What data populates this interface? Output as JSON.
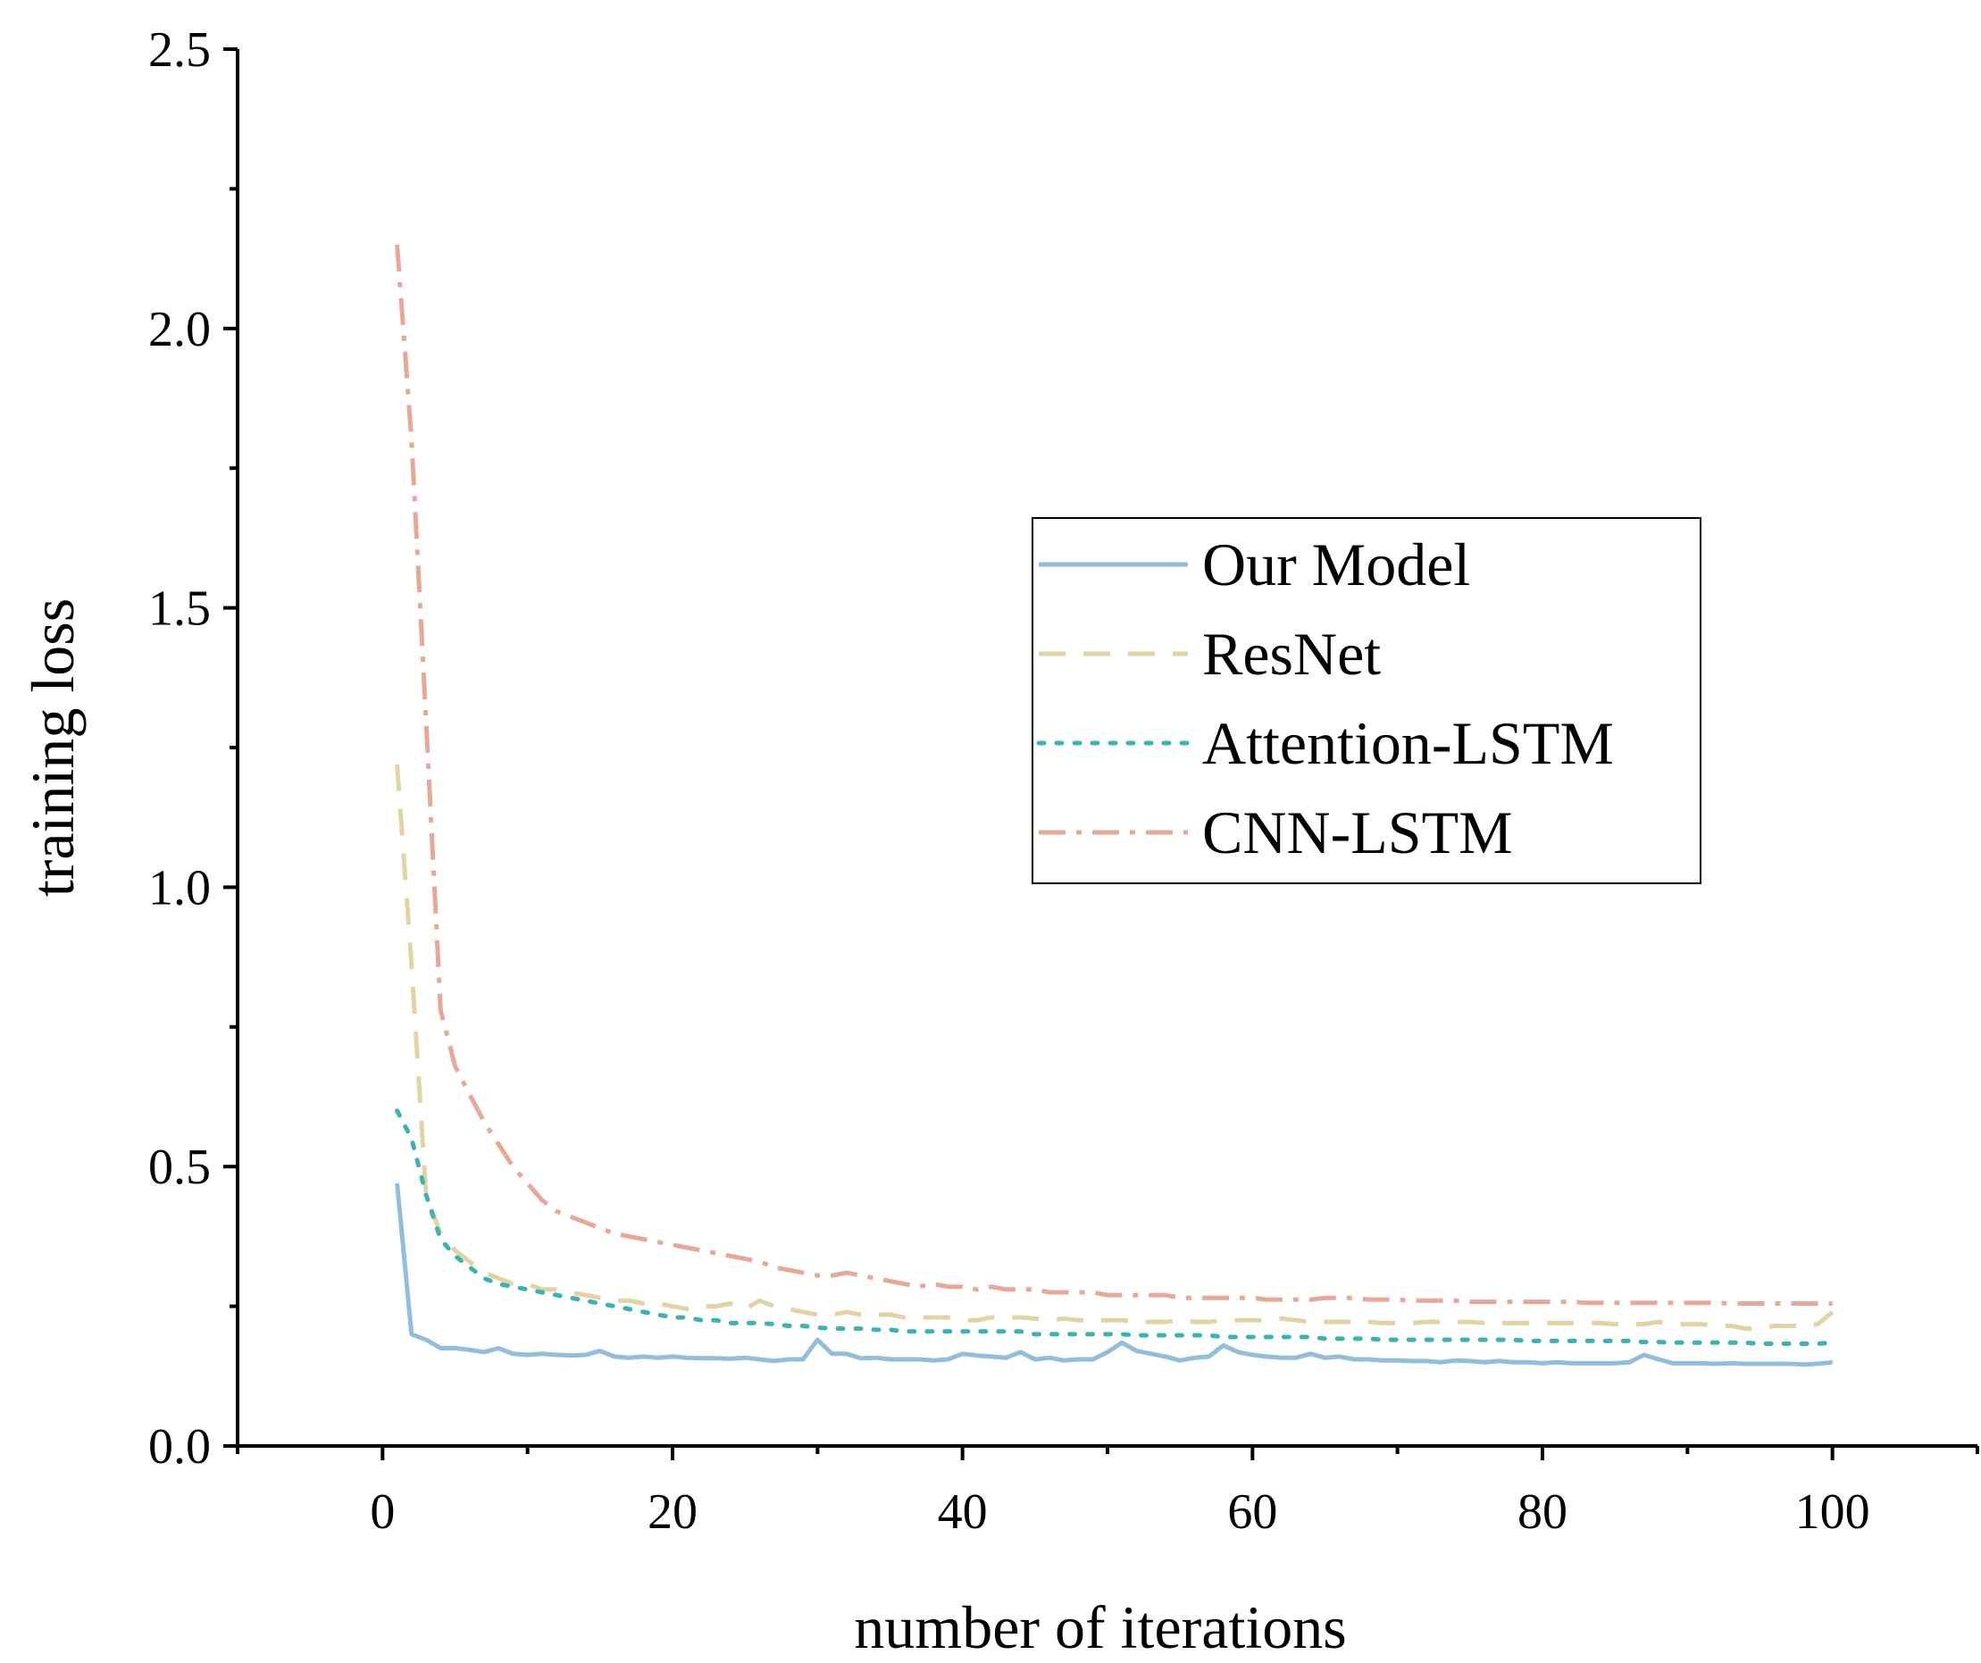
{
  "chart_data": {
    "type": "line",
    "title": "",
    "xlabel": "number of iterations",
    "ylabel": "training loss",
    "xlim": [
      -10,
      110
    ],
    "ylim": [
      0,
      2.5
    ],
    "xticks": [
      0,
      20,
      40,
      60,
      80,
      100
    ],
    "yticks": [
      0.0,
      0.5,
      1.0,
      1.5,
      2.0,
      2.5
    ],
    "xtick_labels": [
      "0",
      "20",
      "40",
      "60",
      "80",
      "100"
    ],
    "ytick_labels": [
      "0.0",
      "0.5",
      "1.0",
      "1.5",
      "2.0",
      "2.5"
    ],
    "legend_position": "center-right",
    "x": [
      1,
      2,
      3,
      4,
      5,
      6,
      7,
      8,
      9,
      10,
      11,
      12,
      13,
      14,
      15,
      16,
      17,
      18,
      19,
      20,
      21,
      22,
      23,
      24,
      25,
      26,
      27,
      28,
      29,
      30,
      31,
      32,
      33,
      34,
      35,
      36,
      37,
      38,
      39,
      40,
      41,
      42,
      43,
      44,
      45,
      46,
      47,
      48,
      49,
      50,
      51,
      52,
      53,
      54,
      55,
      56,
      57,
      58,
      59,
      60,
      61,
      62,
      63,
      64,
      65,
      66,
      67,
      68,
      69,
      70,
      71,
      72,
      73,
      74,
      75,
      76,
      77,
      78,
      79,
      80,
      81,
      82,
      83,
      84,
      85,
      86,
      87,
      88,
      89,
      90,
      91,
      92,
      93,
      94,
      95,
      96,
      97,
      98,
      99,
      100
    ],
    "series": [
      {
        "name": "Our Model",
        "color": "#91bfdb",
        "dash": "solid",
        "values": [
          0.47,
          0.2,
          0.19,
          0.175,
          0.175,
          0.172,
          0.168,
          0.175,
          0.165,
          0.163,
          0.165,
          0.163,
          0.162,
          0.163,
          0.17,
          0.16,
          0.158,
          0.16,
          0.158,
          0.16,
          0.158,
          0.157,
          0.157,
          0.156,
          0.158,
          0.155,
          0.152,
          0.155,
          0.155,
          0.19,
          0.165,
          0.165,
          0.157,
          0.158,
          0.155,
          0.155,
          0.155,
          0.153,
          0.155,
          0.165,
          0.162,
          0.16,
          0.158,
          0.168,
          0.155,
          0.158,
          0.153,
          0.155,
          0.155,
          0.168,
          0.185,
          0.17,
          0.165,
          0.16,
          0.153,
          0.158,
          0.16,
          0.18,
          0.168,
          0.163,
          0.16,
          0.158,
          0.158,
          0.165,
          0.158,
          0.16,
          0.155,
          0.155,
          0.153,
          0.153,
          0.152,
          0.152,
          0.15,
          0.153,
          0.152,
          0.15,
          0.152,
          0.15,
          0.15,
          0.148,
          0.15,
          0.148,
          0.148,
          0.148,
          0.148,
          0.15,
          0.163,
          0.155,
          0.148,
          0.148,
          0.148,
          0.147,
          0.148,
          0.147,
          0.147,
          0.147,
          0.147,
          0.146,
          0.147,
          0.15
        ]
      },
      {
        "name": "ResNet",
        "color": "#e3d3a3",
        "dash": "dashed",
        "values": [
          1.22,
          0.86,
          0.45,
          0.38,
          0.35,
          0.33,
          0.31,
          0.3,
          0.29,
          0.29,
          0.28,
          0.28,
          0.275,
          0.27,
          0.265,
          0.26,
          0.26,
          0.255,
          0.255,
          0.25,
          0.245,
          0.25,
          0.25,
          0.255,
          0.245,
          0.26,
          0.25,
          0.245,
          0.24,
          0.235,
          0.235,
          0.24,
          0.235,
          0.235,
          0.235,
          0.23,
          0.23,
          0.23,
          0.23,
          0.225,
          0.225,
          0.23,
          0.23,
          0.23,
          0.228,
          0.225,
          0.228,
          0.225,
          0.225,
          0.225,
          0.225,
          0.222,
          0.222,
          0.222,
          0.225,
          0.222,
          0.222,
          0.225,
          0.225,
          0.225,
          0.225,
          0.228,
          0.225,
          0.222,
          0.222,
          0.222,
          0.222,
          0.222,
          0.22,
          0.22,
          0.22,
          0.222,
          0.222,
          0.222,
          0.222,
          0.22,
          0.22,
          0.22,
          0.22,
          0.22,
          0.22,
          0.22,
          0.22,
          0.22,
          0.218,
          0.218,
          0.218,
          0.222,
          0.218,
          0.218,
          0.218,
          0.215,
          0.215,
          0.21,
          0.21,
          0.215,
          0.215,
          0.215,
          0.218,
          0.24
        ]
      },
      {
        "name": "Attention-LSTM",
        "color": "#3cb3b3",
        "dash": "dotted",
        "values": [
          0.6,
          0.55,
          0.45,
          0.37,
          0.34,
          0.32,
          0.3,
          0.29,
          0.285,
          0.28,
          0.275,
          0.27,
          0.265,
          0.26,
          0.255,
          0.25,
          0.245,
          0.24,
          0.235,
          0.23,
          0.23,
          0.225,
          0.225,
          0.22,
          0.22,
          0.22,
          0.218,
          0.215,
          0.215,
          0.212,
          0.21,
          0.21,
          0.21,
          0.208,
          0.208,
          0.205,
          0.205,
          0.205,
          0.205,
          0.205,
          0.205,
          0.205,
          0.205,
          0.205,
          0.2,
          0.2,
          0.2,
          0.2,
          0.2,
          0.2,
          0.2,
          0.198,
          0.198,
          0.198,
          0.198,
          0.198,
          0.198,
          0.195,
          0.195,
          0.195,
          0.195,
          0.195,
          0.195,
          0.195,
          0.192,
          0.192,
          0.192,
          0.192,
          0.19,
          0.19,
          0.19,
          0.19,
          0.19,
          0.19,
          0.19,
          0.19,
          0.19,
          0.19,
          0.188,
          0.188,
          0.188,
          0.188,
          0.188,
          0.188,
          0.188,
          0.188,
          0.186,
          0.186,
          0.185,
          0.185,
          0.185,
          0.185,
          0.185,
          0.185,
          0.183,
          0.183,
          0.183,
          0.183,
          0.183,
          0.185
        ]
      },
      {
        "name": "CNN-LSTM",
        "color": "#e8a898",
        "dash": "dashdot",
        "values": [
          2.15,
          1.8,
          1.3,
          0.78,
          0.68,
          0.63,
          0.58,
          0.54,
          0.5,
          0.47,
          0.44,
          0.42,
          0.41,
          0.4,
          0.39,
          0.38,
          0.375,
          0.37,
          0.365,
          0.36,
          0.355,
          0.35,
          0.345,
          0.34,
          0.335,
          0.33,
          0.32,
          0.315,
          0.31,
          0.305,
          0.305,
          0.31,
          0.305,
          0.3,
          0.295,
          0.29,
          0.285,
          0.29,
          0.285,
          0.285,
          0.28,
          0.285,
          0.28,
          0.28,
          0.28,
          0.275,
          0.275,
          0.275,
          0.275,
          0.27,
          0.27,
          0.27,
          0.27,
          0.27,
          0.265,
          0.265,
          0.265,
          0.265,
          0.265,
          0.265,
          0.262,
          0.262,
          0.262,
          0.262,
          0.265,
          0.265,
          0.265,
          0.262,
          0.262,
          0.262,
          0.26,
          0.26,
          0.26,
          0.26,
          0.258,
          0.258,
          0.258,
          0.258,
          0.258,
          0.258,
          0.258,
          0.258,
          0.256,
          0.256,
          0.256,
          0.256,
          0.256,
          0.256,
          0.256,
          0.256,
          0.256,
          0.256,
          0.255,
          0.255,
          0.255,
          0.255,
          0.255,
          0.255,
          0.255,
          0.255
        ]
      }
    ]
  }
}
